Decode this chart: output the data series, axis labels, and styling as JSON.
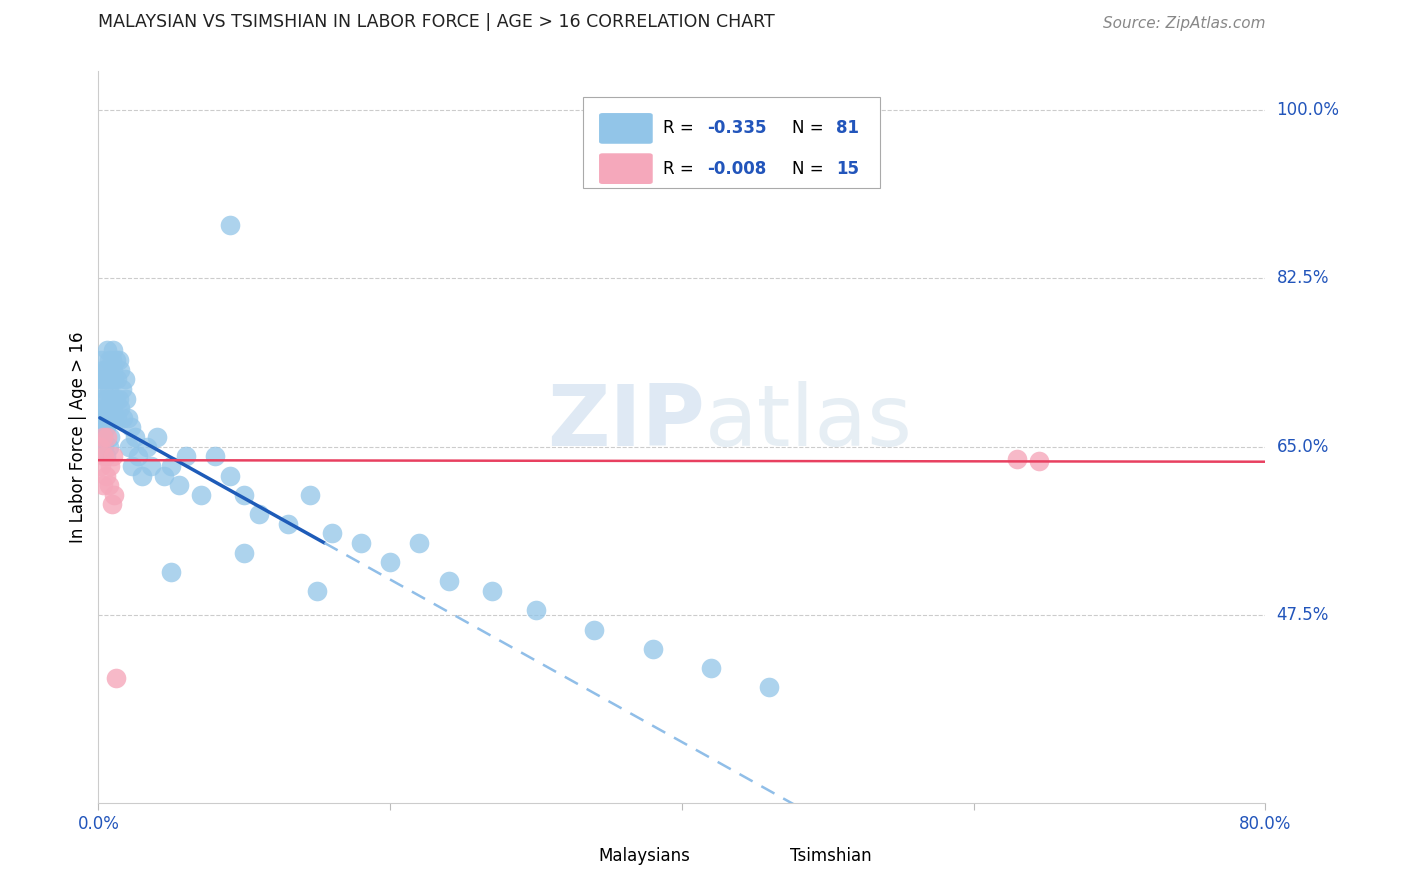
{
  "title": "MALAYSIAN VS TSIMSHIAN IN LABOR FORCE | AGE > 16 CORRELATION CHART",
  "source": "Source: ZipAtlas.com",
  "ylabel": "In Labor Force | Age > 16",
  "watermark_zip": "ZIP",
  "watermark_atlas": "atlas",
  "xlim": [
    0.0,
    0.8
  ],
  "ylim": [
    0.28,
    1.04
  ],
  "ytick_vals": [
    0.475,
    0.65,
    0.825,
    1.0
  ],
  "ytick_labels": [
    "47.5%",
    "65.0%",
    "82.5%",
    "100.0%"
  ],
  "xtick_vals": [
    0.0,
    0.2,
    0.4,
    0.6,
    0.8
  ],
  "xtick_labels": [
    "0.0%",
    "",
    "",
    "",
    "80.0%"
  ],
  "malaysian_color": "#92C5E8",
  "tsimshian_color": "#F5A8BB",
  "trend_blue_solid": "#1E5BB8",
  "trend_blue_dash": "#90BEE8",
  "trend_pink": "#E84060",
  "grid_color": "#cccccc",
  "title_color": "#222222",
  "source_color": "#888888",
  "axis_label_color": "#2255BB",
  "background": "#ffffff",
  "legend_R1": "R = ",
  "legend_V1": "-0.335",
  "legend_N1_label": "N = ",
  "legend_N1": "81",
  "legend_R2": "R = ",
  "legend_V2": "-0.008",
  "legend_N2_label": "N = ",
  "legend_N2": "15",
  "bot_legend1": "Malaysians",
  "bot_legend2": "Tsimshian",
  "mal_x": [
    0.001,
    0.001,
    0.002,
    0.002,
    0.002,
    0.003,
    0.003,
    0.003,
    0.003,
    0.004,
    0.004,
    0.004,
    0.005,
    0.005,
    0.005,
    0.005,
    0.006,
    0.006,
    0.006,
    0.007,
    0.007,
    0.007,
    0.007,
    0.008,
    0.008,
    0.008,
    0.009,
    0.009,
    0.01,
    0.01,
    0.01,
    0.011,
    0.011,
    0.012,
    0.012,
    0.013,
    0.013,
    0.014,
    0.014,
    0.015,
    0.015,
    0.016,
    0.017,
    0.018,
    0.019,
    0.02,
    0.021,
    0.022,
    0.023,
    0.025,
    0.027,
    0.03,
    0.033,
    0.036,
    0.04,
    0.045,
    0.05,
    0.055,
    0.06,
    0.07,
    0.08,
    0.09,
    0.1,
    0.11,
    0.13,
    0.145,
    0.16,
    0.18,
    0.2,
    0.22,
    0.24,
    0.27,
    0.3,
    0.34,
    0.38,
    0.42,
    0.46,
    0.05,
    0.1,
    0.15,
    0.09
  ],
  "mal_y": [
    0.68,
    0.72,
    0.7,
    0.74,
    0.67,
    0.69,
    0.73,
    0.66,
    0.71,
    0.68,
    0.72,
    0.65,
    0.7,
    0.73,
    0.67,
    0.64,
    0.69,
    0.72,
    0.75,
    0.71,
    0.74,
    0.68,
    0.65,
    0.72,
    0.69,
    0.66,
    0.74,
    0.7,
    0.73,
    0.69,
    0.75,
    0.72,
    0.68,
    0.74,
    0.7,
    0.72,
    0.68,
    0.74,
    0.7,
    0.73,
    0.69,
    0.71,
    0.68,
    0.72,
    0.7,
    0.68,
    0.65,
    0.67,
    0.63,
    0.66,
    0.64,
    0.62,
    0.65,
    0.63,
    0.66,
    0.62,
    0.63,
    0.61,
    0.64,
    0.6,
    0.64,
    0.62,
    0.6,
    0.58,
    0.57,
    0.6,
    0.56,
    0.55,
    0.53,
    0.55,
    0.51,
    0.5,
    0.48,
    0.46,
    0.44,
    0.42,
    0.4,
    0.52,
    0.54,
    0.5,
    0.88
  ],
  "tsi_x": [
    0.001,
    0.002,
    0.003,
    0.003,
    0.004,
    0.005,
    0.006,
    0.007,
    0.008,
    0.009,
    0.01,
    0.011,
    0.012,
    0.63,
    0.645
  ],
  "tsi_y": [
    0.65,
    0.63,
    0.66,
    0.61,
    0.64,
    0.62,
    0.66,
    0.61,
    0.63,
    0.59,
    0.64,
    0.6,
    0.41,
    0.637,
    0.635
  ],
  "trend_solid_x0": 0.001,
  "trend_solid_x1": 0.155,
  "trend_dash_x0": 0.155,
  "trend_dash_x1": 0.8
}
